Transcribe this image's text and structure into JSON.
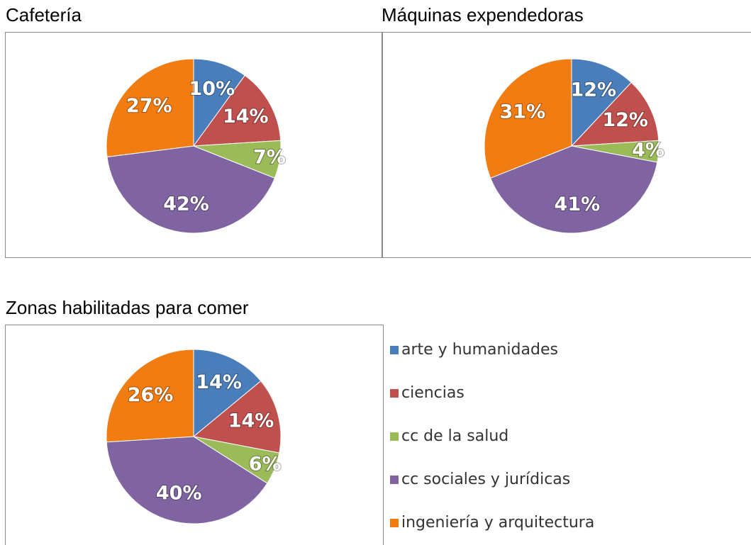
{
  "chart_data": [
    {
      "type": "pie",
      "title": "Cafetería",
      "values": [
        10,
        14,
        7,
        42,
        27
      ],
      "value_labels": [
        "10%",
        "14%",
        "7%",
        "42%",
        "27%"
      ]
    },
    {
      "type": "pie",
      "title": "Máquinas expendedoras",
      "values": [
        12,
        12,
        4,
        41,
        31
      ],
      "value_labels": [
        "12%",
        "12%",
        "4%",
        "41%",
        "31%"
      ]
    },
    {
      "type": "pie",
      "title": "Zonas habilitadas para comer",
      "values": [
        14,
        14,
        6,
        40,
        26
      ],
      "value_labels": [
        "14%",
        "14%",
        "6%",
        "40%",
        "26%"
      ]
    }
  ],
  "legend": {
    "categories": [
      "arte y humanidades",
      "ciencias",
      "cc de la salud",
      "cc sociales y jurídicas",
      "ingeniería y arquitectura"
    ],
    "colors": [
      "#4a7ebb",
      "#c0504d",
      "#9bbb59",
      "#8064a2",
      "#f07c12"
    ]
  }
}
